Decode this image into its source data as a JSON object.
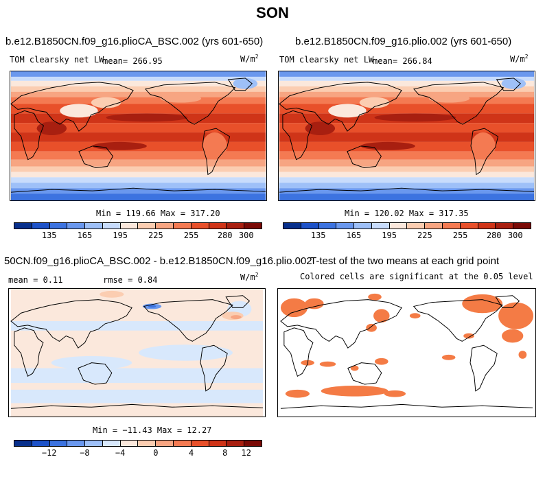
{
  "title": "SON",
  "panels": [
    {
      "title": "b.e12.B1850CN.f09_g16.plioCA_BSC.002 (yrs 601-650)",
      "variable": "TOM clearsky net LW",
      "mean_label": "mean= 266.95",
      "units": "W/m",
      "units_exp": "2",
      "minmax": "Min = 119.66 Max = 317.20",
      "colorbar_ticks": [
        "135",
        "165",
        "195",
        "225",
        "255",
        "280",
        "300"
      ]
    },
    {
      "title": "b.e12.B1850CN.f09_g16.plio.002 (yrs 601-650)",
      "variable": "TOM clearsky net LW",
      "mean_label": "mean= 266.84",
      "units": "W/m",
      "units_exp": "2",
      "minmax": "Min = 120.02 Max = 317.35",
      "colorbar_ticks": [
        "135",
        "165",
        "195",
        "225",
        "255",
        "280",
        "300"
      ]
    },
    {
      "title": "50CN.f09_g16.plioCA_BSC.002 - b.e12.B1850CN.f09_g16.plio.002",
      "mean_label": "mean =   0.11",
      "rmse_label": "rmse =   0.84",
      "units": "W/m",
      "units_exp": "2",
      "minmax": "Min = −11.43 Max =  12.27",
      "colorbar_ticks": [
        "−12",
        "−8",
        "−4",
        "0",
        "4",
        "8",
        "12"
      ]
    },
    {
      "title": "T-test of the two means at each grid point",
      "subtitle": "Colored cells are significant at the 0.05 level"
    }
  ],
  "colors": {
    "abs_scale": [
      "#08308c",
      "#1d52c8",
      "#3c73e0",
      "#6a98ee",
      "#9ec0f8",
      "#c8dcfc",
      "#fbe8dc",
      "#fbcdb1",
      "#f7a582",
      "#f47a52",
      "#e8502a",
      "#cf3418",
      "#a81f10",
      "#7a0a06"
    ],
    "diff_scale": [
      "#08308c",
      "#1d52c8",
      "#3c73e0",
      "#6a98ee",
      "#9ec0f8",
      "#d8e8fc",
      "#fbe8dc",
      "#fbcdb1",
      "#f7a582",
      "#f47a52",
      "#e8502a",
      "#cf3418",
      "#a81f10",
      "#7a0a06"
    ],
    "significant": "#f47b45"
  }
}
